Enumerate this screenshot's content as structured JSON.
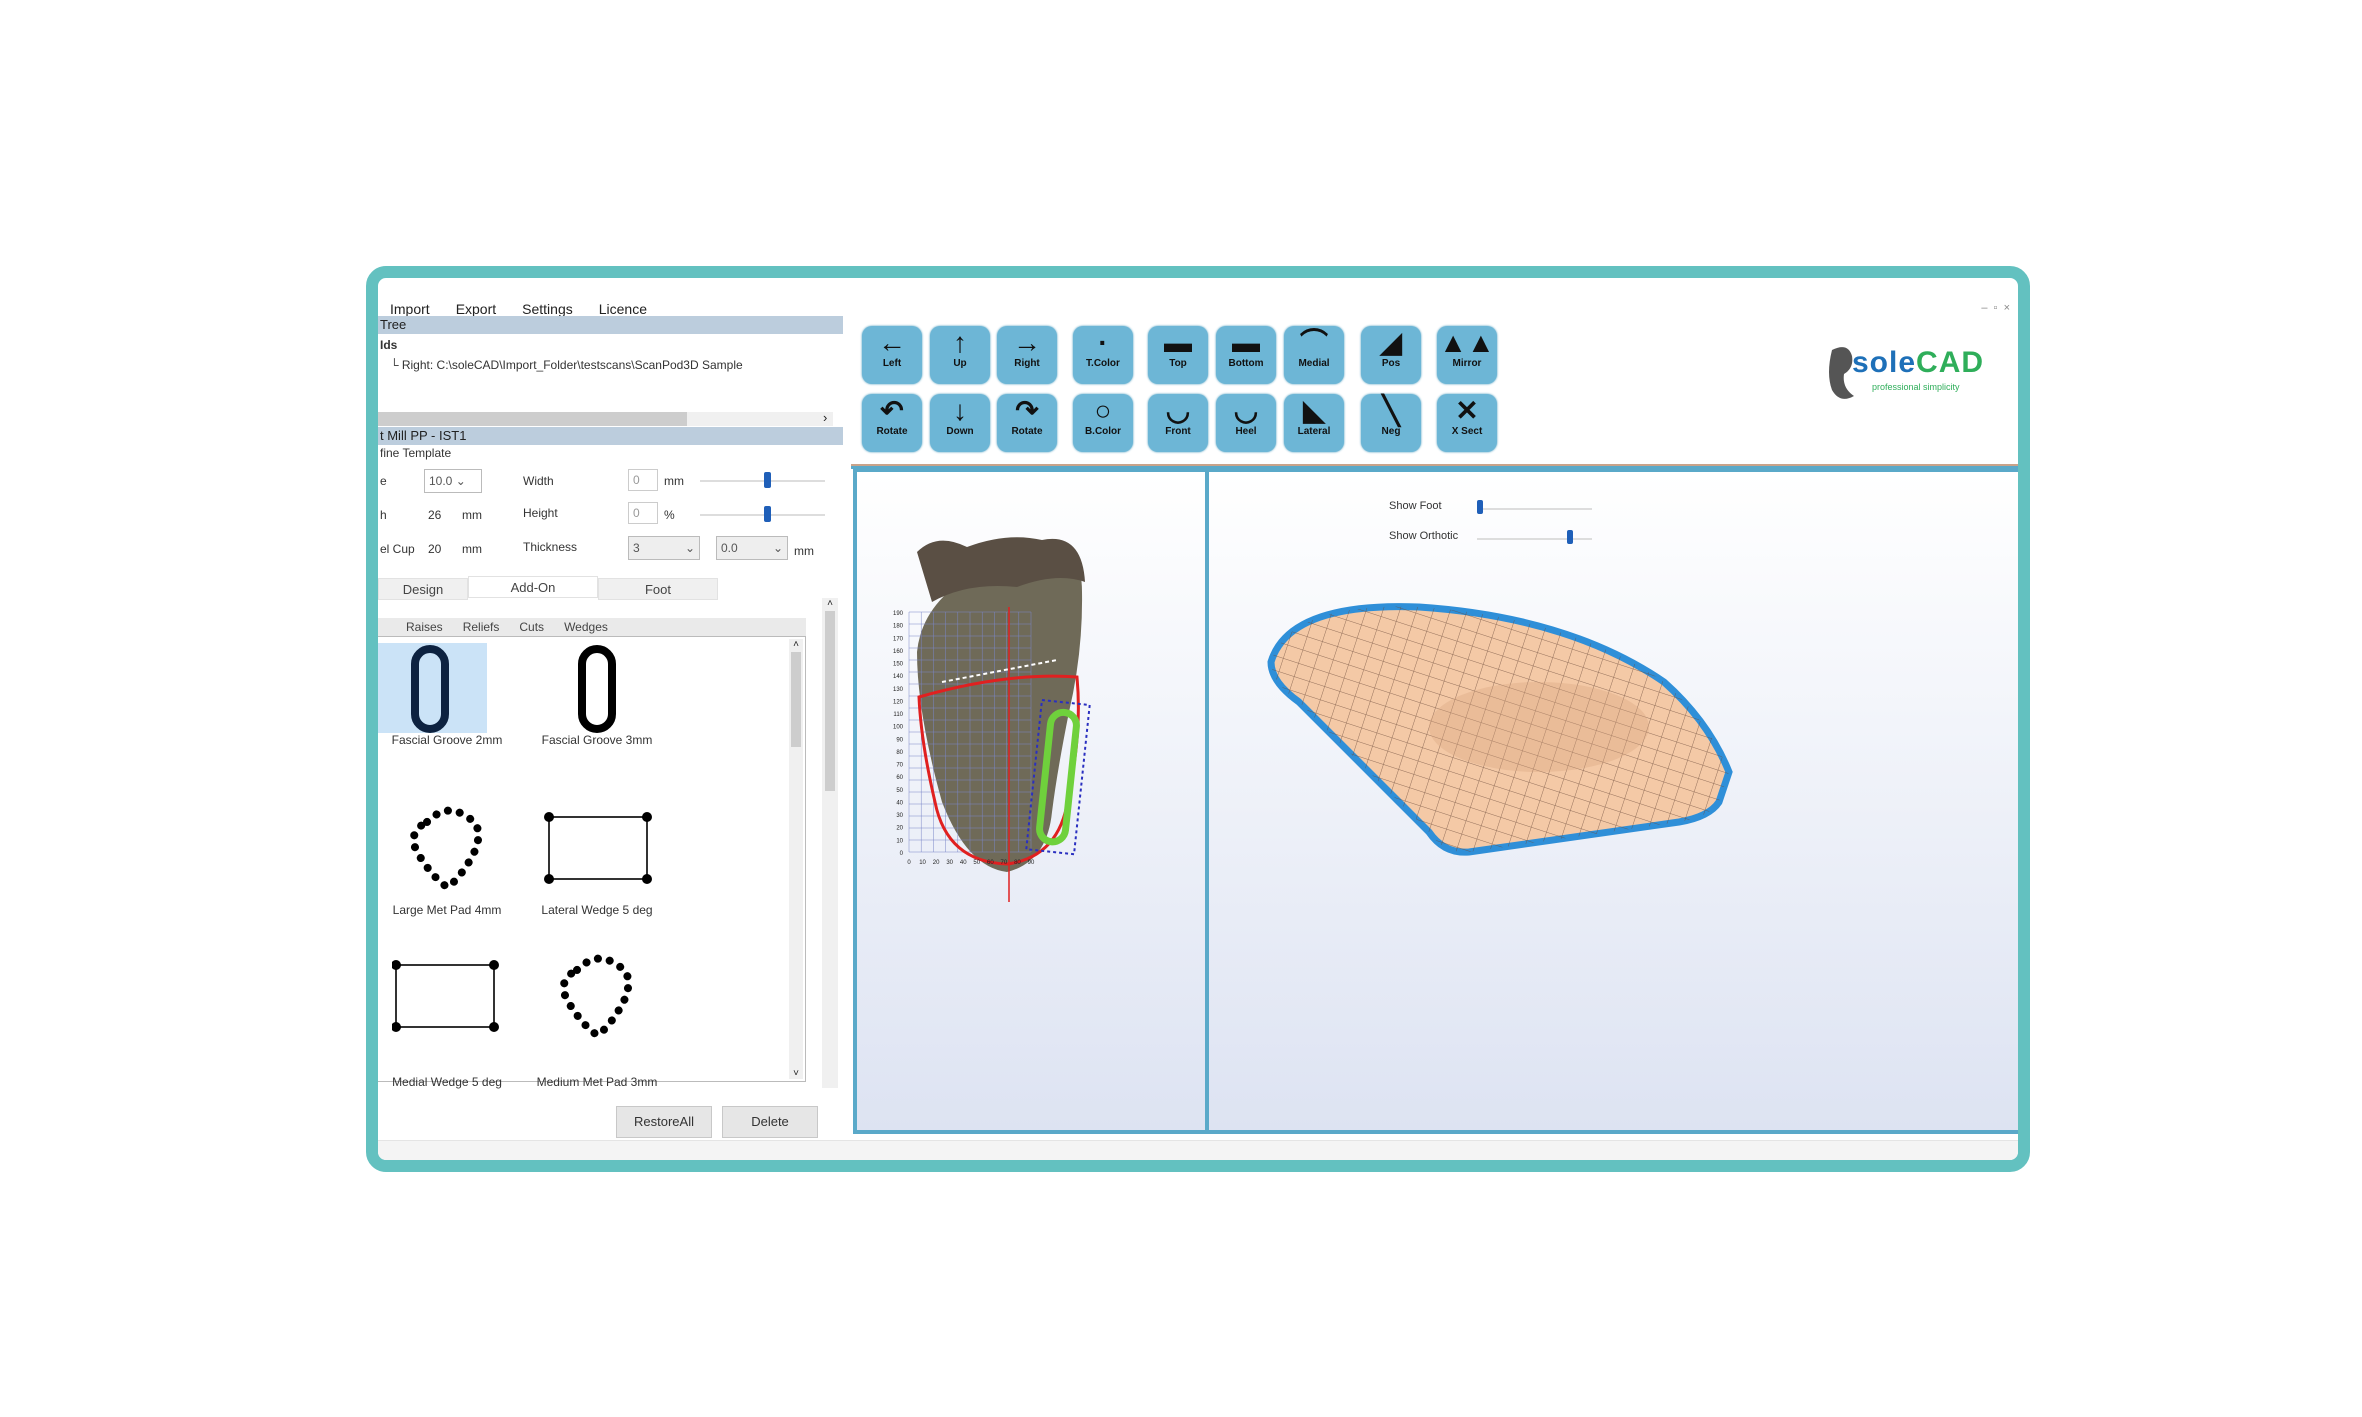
{
  "menu": [
    "Import",
    "Export",
    "Settings",
    "Licence"
  ],
  "tree": {
    "header": "Tree",
    "root": "Ids",
    "item": "Right: C:\\soleCAD\\Import_Folder\\testscans\\ScanPod3D Sample"
  },
  "template": {
    "header": "t Mill PP - IST1",
    "group": "fine Template",
    "rows": [
      {
        "label": "e",
        "value": "10.0",
        "field": "Width",
        "field_value": "0",
        "unit": "mm",
        "slider": 0.55
      },
      {
        "label": "h",
        "value": "26",
        "value_unit": "mm",
        "field": "Height",
        "field_value": "0",
        "unit": "%",
        "slider": 0.55
      },
      {
        "label": "el Cup",
        "value": "20",
        "value_unit": "mm",
        "field": "Thickness",
        "select1": "3",
        "select2": "0.0",
        "unit": "mm"
      }
    ]
  },
  "tabs": [
    {
      "label": "Design"
    },
    {
      "label": "Add-On",
      "active": true
    },
    {
      "label": "Foot"
    }
  ],
  "subtabs": [
    "Raises",
    "Reliefs",
    "Cuts",
    "Wedges"
  ],
  "addons": [
    {
      "label": "Fascial Groove 2mm",
      "icon": "groove-icon",
      "selected": true
    },
    {
      "label": "Fascial Groove 3mm",
      "icon": "groove-icon"
    },
    {
      "label": "Large Met Pad 4mm",
      "icon": "met-pad-icon"
    },
    {
      "label": "Lateral Wedge 5 deg",
      "icon": "wedge-icon"
    },
    {
      "label": "Medial Wedge 5 deg",
      "icon": "wedge-icon"
    },
    {
      "label": "Medium Met Pad 3mm",
      "icon": "met-pad-icon"
    }
  ],
  "buttons": {
    "restore": "RestoreAll",
    "delete": "Delete"
  },
  "toolbar": {
    "row1": [
      {
        "label": "Left",
        "icon": "←"
      },
      {
        "label": "Up",
        "icon": "↑"
      },
      {
        "label": "Right",
        "icon": "→"
      },
      {
        "label": "T.Color",
        "icon": "·"
      },
      {
        "label": "Top",
        "icon": "▬"
      },
      {
        "label": "Bottom",
        "icon": "▬"
      },
      {
        "label": "Medial",
        "icon": "⌒"
      },
      {
        "label": "Pos",
        "icon": "◢"
      },
      {
        "label": "Mirror",
        "icon": "▲▲"
      }
    ],
    "row2": [
      {
        "label": "Rotate",
        "icon": "↶"
      },
      {
        "label": "Down",
        "icon": "↓"
      },
      {
        "label": "Rotate",
        "icon": "↷"
      },
      {
        "label": "B.Color",
        "icon": "○"
      },
      {
        "label": "Front",
        "icon": "◡"
      },
      {
        "label": "Heel",
        "icon": "◡"
      },
      {
        "label": "Lateral",
        "icon": "◣"
      },
      {
        "label": "Neg",
        "icon": "╲"
      },
      {
        "label": "X Sect",
        "icon": "✕"
      }
    ]
  },
  "logo": {
    "name": "soleCAD",
    "tagline": "professional simplicity"
  },
  "view": {
    "show_foot": "Show Foot",
    "show_foot_value": 0.0,
    "show_orthotic": "Show Orthotic",
    "show_orthotic_value": 0.8
  },
  "colors": {
    "frame": "#63c1c0",
    "toolbar_button": "#6db6d6",
    "viewport_border": "#5aa9c9",
    "orthotic_edge": "#2f8fd8",
    "orthotic_fill": "#f4c9a6",
    "groove": "#6fd13c",
    "outline": "#e02020"
  },
  "foot_axis": {
    "y_ticks": [
      "0",
      "10",
      "20",
      "30",
      "40",
      "50",
      "60",
      "70",
      "80",
      "90",
      "100",
      "110",
      "120",
      "130",
      "140",
      "150",
      "160",
      "170",
      "180",
      "190"
    ],
    "x_ticks": [
      "0",
      "10",
      "20",
      "30",
      "40",
      "50",
      "60",
      "70",
      "80",
      "90"
    ]
  }
}
